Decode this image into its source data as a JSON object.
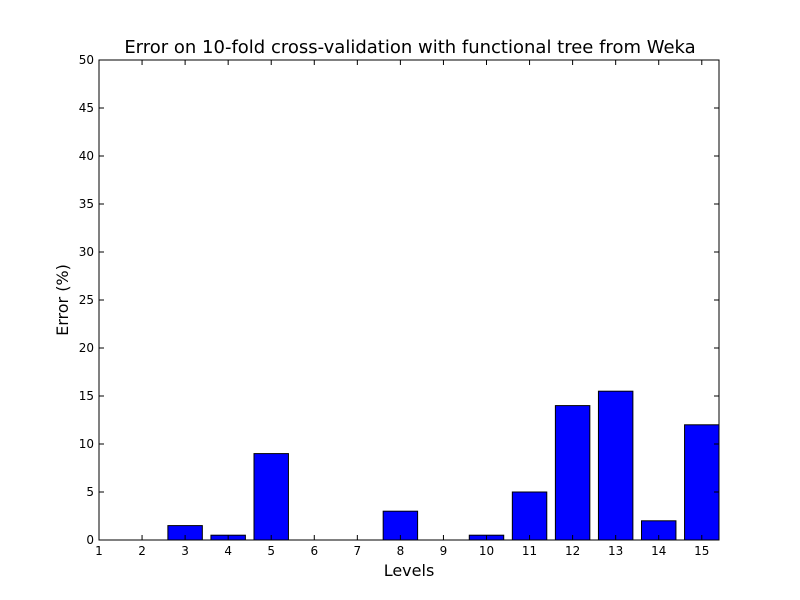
{
  "chart_data": {
    "type": "bar",
    "title": "Error on 10-fold cross-validation with functional tree from Weka",
    "xlabel": "Levels",
    "ylabel": "Error (%)",
    "xlim": [
      1,
      15.4
    ],
    "ylim": [
      0,
      50
    ],
    "x_ticks": [
      1,
      2,
      3,
      4,
      5,
      6,
      7,
      8,
      9,
      10,
      11,
      12,
      13,
      14,
      15
    ],
    "y_ticks": [
      0,
      5,
      10,
      15,
      20,
      25,
      30,
      35,
      40,
      45,
      50
    ],
    "bar_width": 0.8,
    "bar_align": "left-edge-at-level-0.4",
    "categories": [
      1,
      2,
      3,
      4,
      5,
      6,
      7,
      8,
      9,
      10,
      11,
      12,
      13,
      14,
      15
    ],
    "values": [
      0,
      0,
      1.5,
      0.5,
      9,
      0,
      0,
      3,
      0,
      0.5,
      5,
      14,
      15.5,
      2,
      12
    ],
    "grid": false,
    "legend": "none",
    "colors": {
      "bar_fill": "#0000ff",
      "bar_edge": "#000000",
      "axes": "#000000",
      "background": "#ffffff"
    }
  }
}
